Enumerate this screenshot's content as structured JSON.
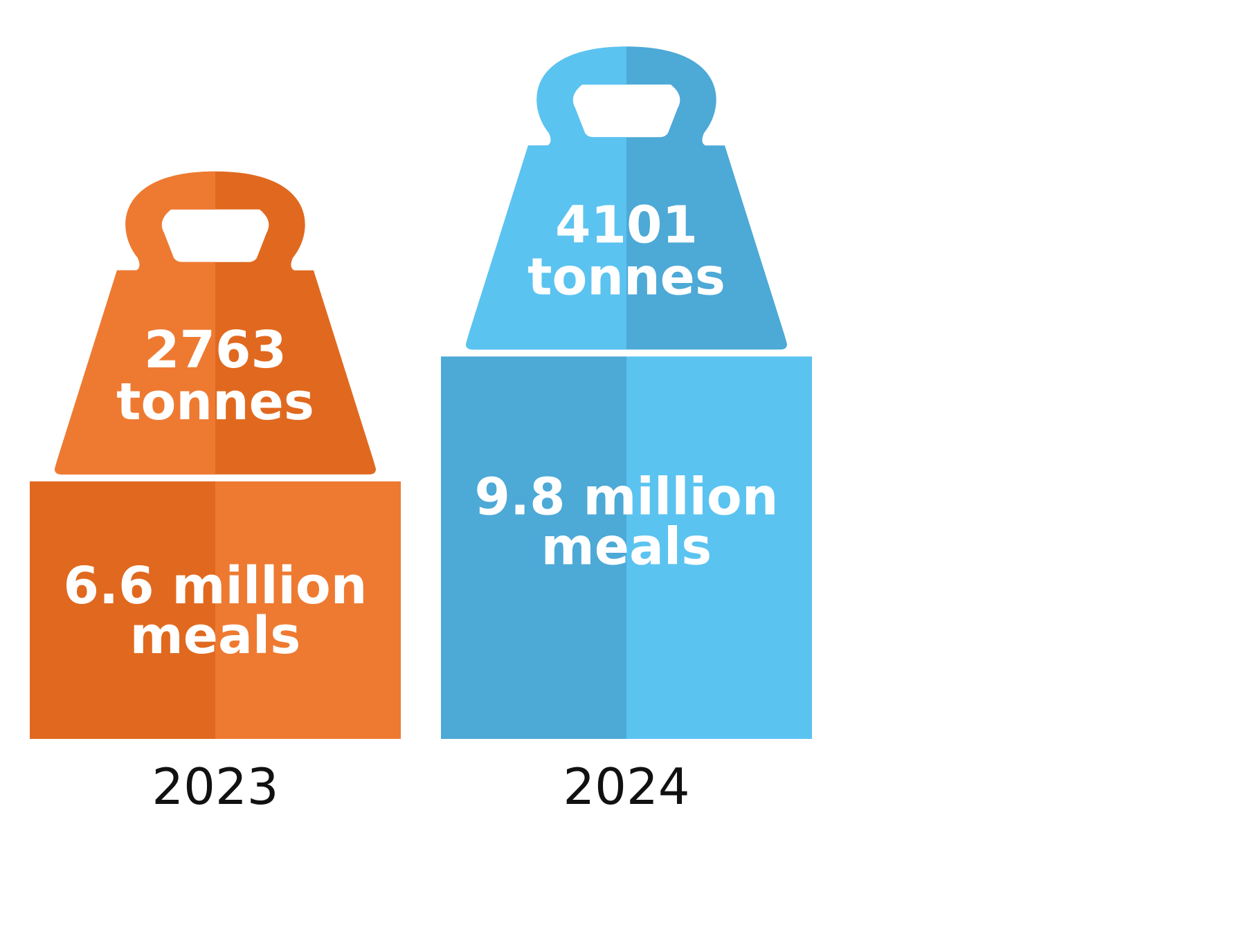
{
  "chart_data": {
    "type": "bar",
    "categories": [
      "2023",
      "2024"
    ],
    "series": [
      {
        "values": [
          6.6,
          9.8
        ],
        "unit": "million meals"
      },
      {
        "values": [
          2763,
          4101
        ],
        "unit": "tonnes"
      }
    ],
    "labels": [
      {
        "year": "2023",
        "weight_line1": "2763",
        "weight_line2": "tonnes",
        "meals_line1": "6.6 million",
        "meals_line2": "meals"
      },
      {
        "year": "2024",
        "weight_line1": "4101",
        "weight_line2": "tonnes",
        "meals_line1": "9.8 million",
        "meals_line2": "meals"
      }
    ],
    "colors": {
      "2023": {
        "light": "#EE7A32",
        "dark": "#E0691F"
      },
      "2024": {
        "light": "#5BC3F0",
        "dark": "#4DA9D6"
      }
    },
    "title": "",
    "xlabel": "",
    "ylabel": ""
  }
}
